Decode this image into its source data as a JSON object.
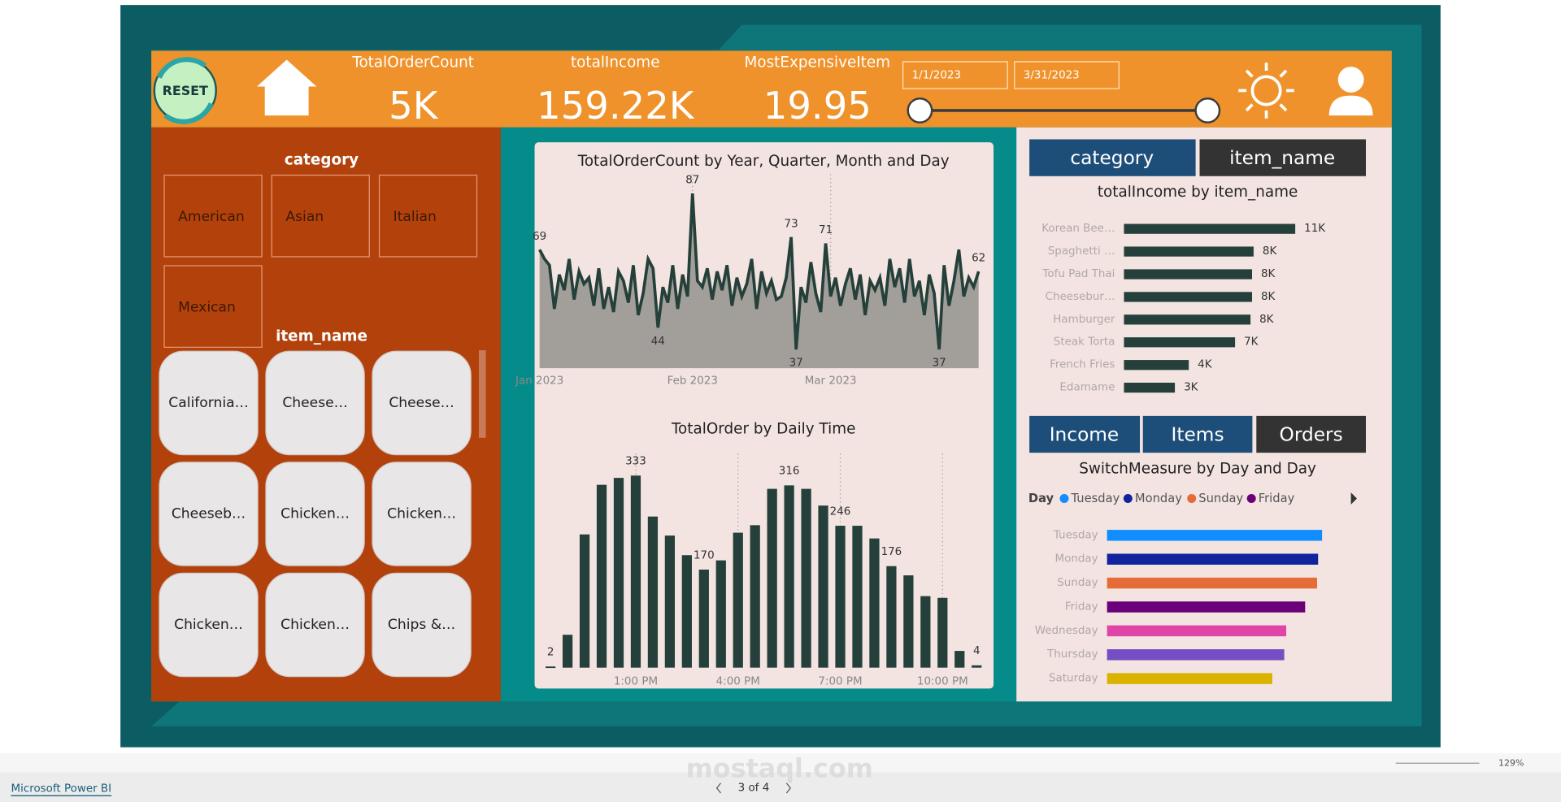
{
  "header": {
    "reset": "RESET",
    "kpis": [
      {
        "label": "TotalOrderCount",
        "value": "5K"
      },
      {
        "label": "totalIncome",
        "value": "159.22K"
      },
      {
        "label": "MostExpensiveItem",
        "value": "19.95"
      }
    ],
    "date_start": "1/1/2023",
    "date_end": "3/31/2023"
  },
  "category_slicer": {
    "title": "category",
    "items": [
      "American",
      "Asian",
      "Italian",
      "Mexican"
    ]
  },
  "item_slicer": {
    "title": "item_name",
    "items": [
      "California…",
      "Cheese…",
      "Cheese…",
      "Cheeseb…",
      "Chicken…",
      "Chicken…",
      "Chicken…",
      "Chicken…",
      "Chips &…"
    ]
  },
  "toggles": {
    "top": [
      "category",
      "item_name"
    ],
    "measure": [
      "Income",
      "Items",
      "Orders"
    ]
  },
  "chart_data": [
    {
      "type": "line",
      "title": "TotalOrderCount by Year, Quarter, Month and Day",
      "color": "#25403a",
      "area_color": "#a29e9a",
      "categories": [
        "Jan 2023",
        null,
        null,
        null,
        null,
        null,
        null,
        null,
        null,
        null,
        null,
        null,
        null,
        null,
        null,
        null,
        null,
        null,
        null,
        null,
        null,
        null,
        null,
        null,
        null,
        null,
        null,
        null,
        null,
        null,
        null,
        "Feb 2023",
        null,
        null,
        null,
        null,
        null,
        null,
        null,
        null,
        null,
        null,
        null,
        null,
        null,
        null,
        null,
        null,
        null,
        null,
        null,
        null,
        null,
        null,
        null,
        null,
        null,
        null,
        null,
        "Mar 2023",
        null,
        null,
        null,
        null,
        null,
        null,
        null,
        null,
        null,
        null,
        null,
        null,
        null,
        null,
        null,
        null,
        null,
        null,
        null,
        null,
        null,
        null,
        null,
        null,
        null,
        null,
        null,
        null,
        null,
        null
      ],
      "values": [
        69,
        66,
        64,
        50,
        61,
        56,
        66,
        53,
        62,
        58,
        60,
        51,
        63,
        50,
        57,
        49,
        62,
        59,
        52,
        64,
        48,
        55,
        66,
        63,
        44,
        57,
        52,
        64,
        50,
        61,
        54,
        87,
        59,
        57,
        63,
        53,
        62,
        56,
        64,
        51,
        60,
        54,
        58,
        66,
        50,
        62,
        55,
        59,
        53,
        54,
        60,
        73,
        37,
        57,
        52,
        65,
        55,
        49,
        71,
        54,
        60,
        51,
        58,
        63,
        53,
        61,
        48,
        59,
        56,
        60,
        51,
        66,
        57,
        63,
        52,
        66,
        54,
        59,
        48,
        61,
        55,
        37,
        64,
        51,
        59,
        69,
        54,
        60,
        57,
        62
      ],
      "ylim": [
        31,
        90
      ]
    },
    {
      "type": "bar",
      "title": "TotalOrder by Daily Time",
      "color": "#25403a",
      "categories": [
        null,
        null,
        null,
        null,
        null,
        "1:00 PM",
        null,
        null,
        null,
        null,
        null,
        "4:00 PM",
        null,
        null,
        null,
        null,
        null,
        "7:00 PM",
        null,
        null,
        null,
        null,
        null,
        "10:00 PM",
        null,
        null
      ],
      "values": [
        2,
        57,
        231,
        317,
        329,
        333,
        262,
        229,
        195,
        170,
        186,
        234,
        247,
        310,
        316,
        310,
        281,
        246,
        246,
        224,
        176,
        160,
        124,
        121,
        29,
        4
      ],
      "ylim": [
        0,
        345
      ]
    },
    {
      "type": "hbar",
      "title": "totalIncome by item_name",
      "color": "#25403a",
      "categories": [
        "Korean Bee…",
        "Spaghetti …",
        "Tofu Pad Thai",
        "Cheesebur…",
        "Hamburger",
        "Steak Torta",
        "French Fries",
        "Edamame"
      ],
      "values": [
        11100,
        8400,
        8300,
        8300,
        8200,
        7200,
        4200,
        3300
      ],
      "value_labels": [
        "11K",
        "8K",
        "8K",
        "8K",
        "8K",
        "7K",
        "4K",
        "3K"
      ],
      "xlim": [
        0,
        12000
      ]
    },
    {
      "type": "hbar",
      "title": "SwitchMeasure by Day and Day",
      "legend_title": "Day",
      "categories": [
        "Tuesday",
        "Monday",
        "Sunday",
        "Friday",
        "Wednesday",
        "Thursday",
        "Saturday"
      ],
      "colors": [
        "#118dff",
        "#12239e",
        "#e66c37",
        "#6b007b",
        "#e044a7",
        "#744ec2",
        "#d9b300"
      ],
      "values": [
        216,
        212,
        211,
        199,
        180,
        178,
        166
      ],
      "xlim": [
        0,
        240
      ]
    }
  ],
  "footer": {
    "app": "Microsoft Power BI",
    "page": "3 of 4",
    "zoom": "129%",
    "watermark": "mostaql.com"
  }
}
